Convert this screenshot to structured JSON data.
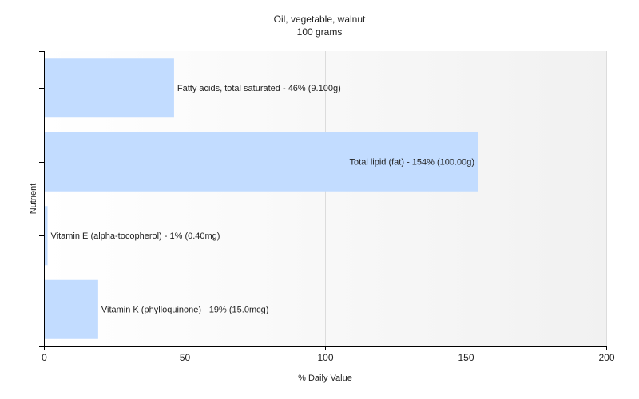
{
  "chart_data": {
    "type": "bar",
    "orientation": "horizontal",
    "title": "Oil, vegetable, walnut",
    "subtitle": "100 grams",
    "xlabel": "% Daily Value",
    "ylabel": "Nutrient",
    "xlim": [
      0,
      200
    ],
    "xticks": [
      0,
      50,
      100,
      150,
      200
    ],
    "grid": true,
    "bar_color": "#c2dcff",
    "bars": [
      {
        "value": 46,
        "label": "Fatty acids, total saturated - 46% (9.100g)"
      },
      {
        "value": 154,
        "label": "Total lipid (fat) - 154% (100.00g)"
      },
      {
        "value": 1,
        "label": "Vitamin E (alpha-tocopherol) - 1% (0.40mg)"
      },
      {
        "value": 19,
        "label": "Vitamin K (phylloquinone) - 19% (15.0mcg)"
      }
    ]
  }
}
